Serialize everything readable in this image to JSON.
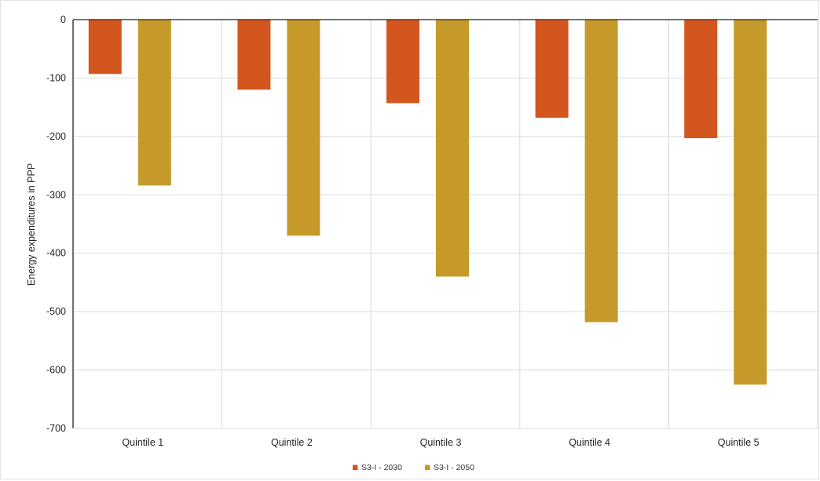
{
  "chart_data": {
    "type": "bar",
    "categories": [
      "Quintile 1",
      "Quintile 2",
      "Quintile 3",
      "Quintile 4",
      "Quintile 5"
    ],
    "series": [
      {
        "name": "S3-I - 2030",
        "color": "#d4561f",
        "values": [
          -93,
          -120,
          -143,
          -168,
          -203
        ]
      },
      {
        "name": "S3-I - 2050",
        "color": "#c59a2a",
        "values": [
          -284,
          -370,
          -440,
          -518,
          -625
        ]
      }
    ],
    "title": "",
    "xlabel": "",
    "ylabel": "Energy expenditures  in PPP",
    "ylim": [
      -700,
      0
    ],
    "yticks": [
      0,
      -100,
      -200,
      -300,
      -400,
      -500,
      -600,
      -700
    ],
    "grid": true,
    "legend_position": "bottom-center",
    "colors": {
      "grid": "#d9d9d9",
      "axis": "#222222"
    }
  }
}
